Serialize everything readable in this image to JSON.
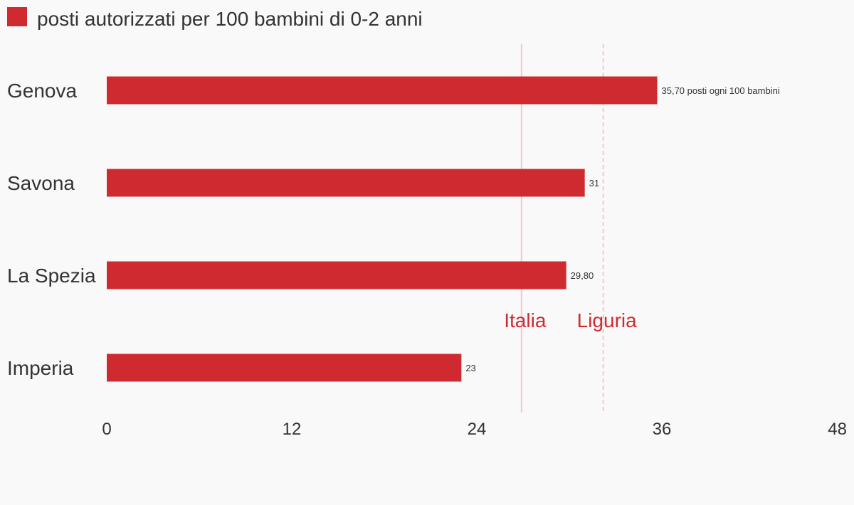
{
  "chart_data": {
    "type": "bar",
    "orientation": "horizontal",
    "title": "",
    "xlabel": "",
    "ylabel": "",
    "categories": [
      "Genova",
      "Savona",
      "La Spezia",
      "Imperia"
    ],
    "series": [
      {
        "name": "posti autorizzati per 100 bambini di 0-2 anni",
        "color": "#cf2a30",
        "values": [
          35.7,
          31,
          29.8,
          23
        ],
        "labels": [
          "35,70 posti ogni 100 bambini",
          "31",
          "29,80",
          "23"
        ]
      }
    ],
    "xlim": [
      0,
      48
    ],
    "xticks": [
      0,
      12,
      24,
      36,
      48
    ],
    "xtick_labels": [
      "0",
      "12",
      "24",
      "36",
      "48"
    ],
    "grid": false,
    "legend_position": "top-left",
    "reference_lines": [
      {
        "label": "Italia",
        "value": 26.9,
        "style": "solid",
        "color": "#f5c6c8",
        "label_color": "#cf2a30"
      },
      {
        "label": "Liguria",
        "value": 32.2,
        "style": "dashed",
        "color": "#f5c6c8",
        "label_color": "#cf2a30"
      }
    ]
  }
}
